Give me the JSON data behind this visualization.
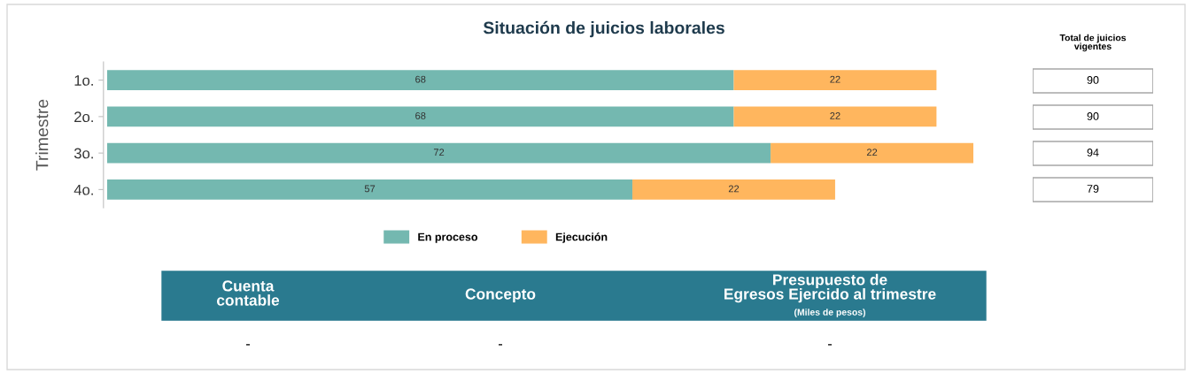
{
  "chart_data": [
    {
      "type": "bar",
      "orientation": "horizontal",
      "stacked": true,
      "title": "Situación de juicios laborales",
      "ylabel": "Trimestre",
      "categories": [
        "1o.",
        "2o.",
        "3o.",
        "4o."
      ],
      "series": [
        {
          "name": "En proceso",
          "color": "#74b8b0",
          "values": [
            68,
            68,
            72,
            57
          ]
        },
        {
          "name": "Ejecución",
          "color": "#ffb65e",
          "values": [
            22,
            22,
            22,
            22
          ]
        }
      ],
      "data_labels": true,
      "legend": "bottom",
      "grid": false,
      "tick_labels": "y",
      "annotations": [
        "Cuenta\ncontable",
        "Concepto",
        "Presupuesto de\nEgresos Ejercido al trimestre",
        "(Miles de pesos)",
        "-",
        "-",
        "-"
      ]
    },
    {
      "type": "other",
      "title": "Total de juicios\nvigentes",
      "annotations": [
        "90",
        "90",
        "94",
        "79"
      ]
    }
  ]
}
